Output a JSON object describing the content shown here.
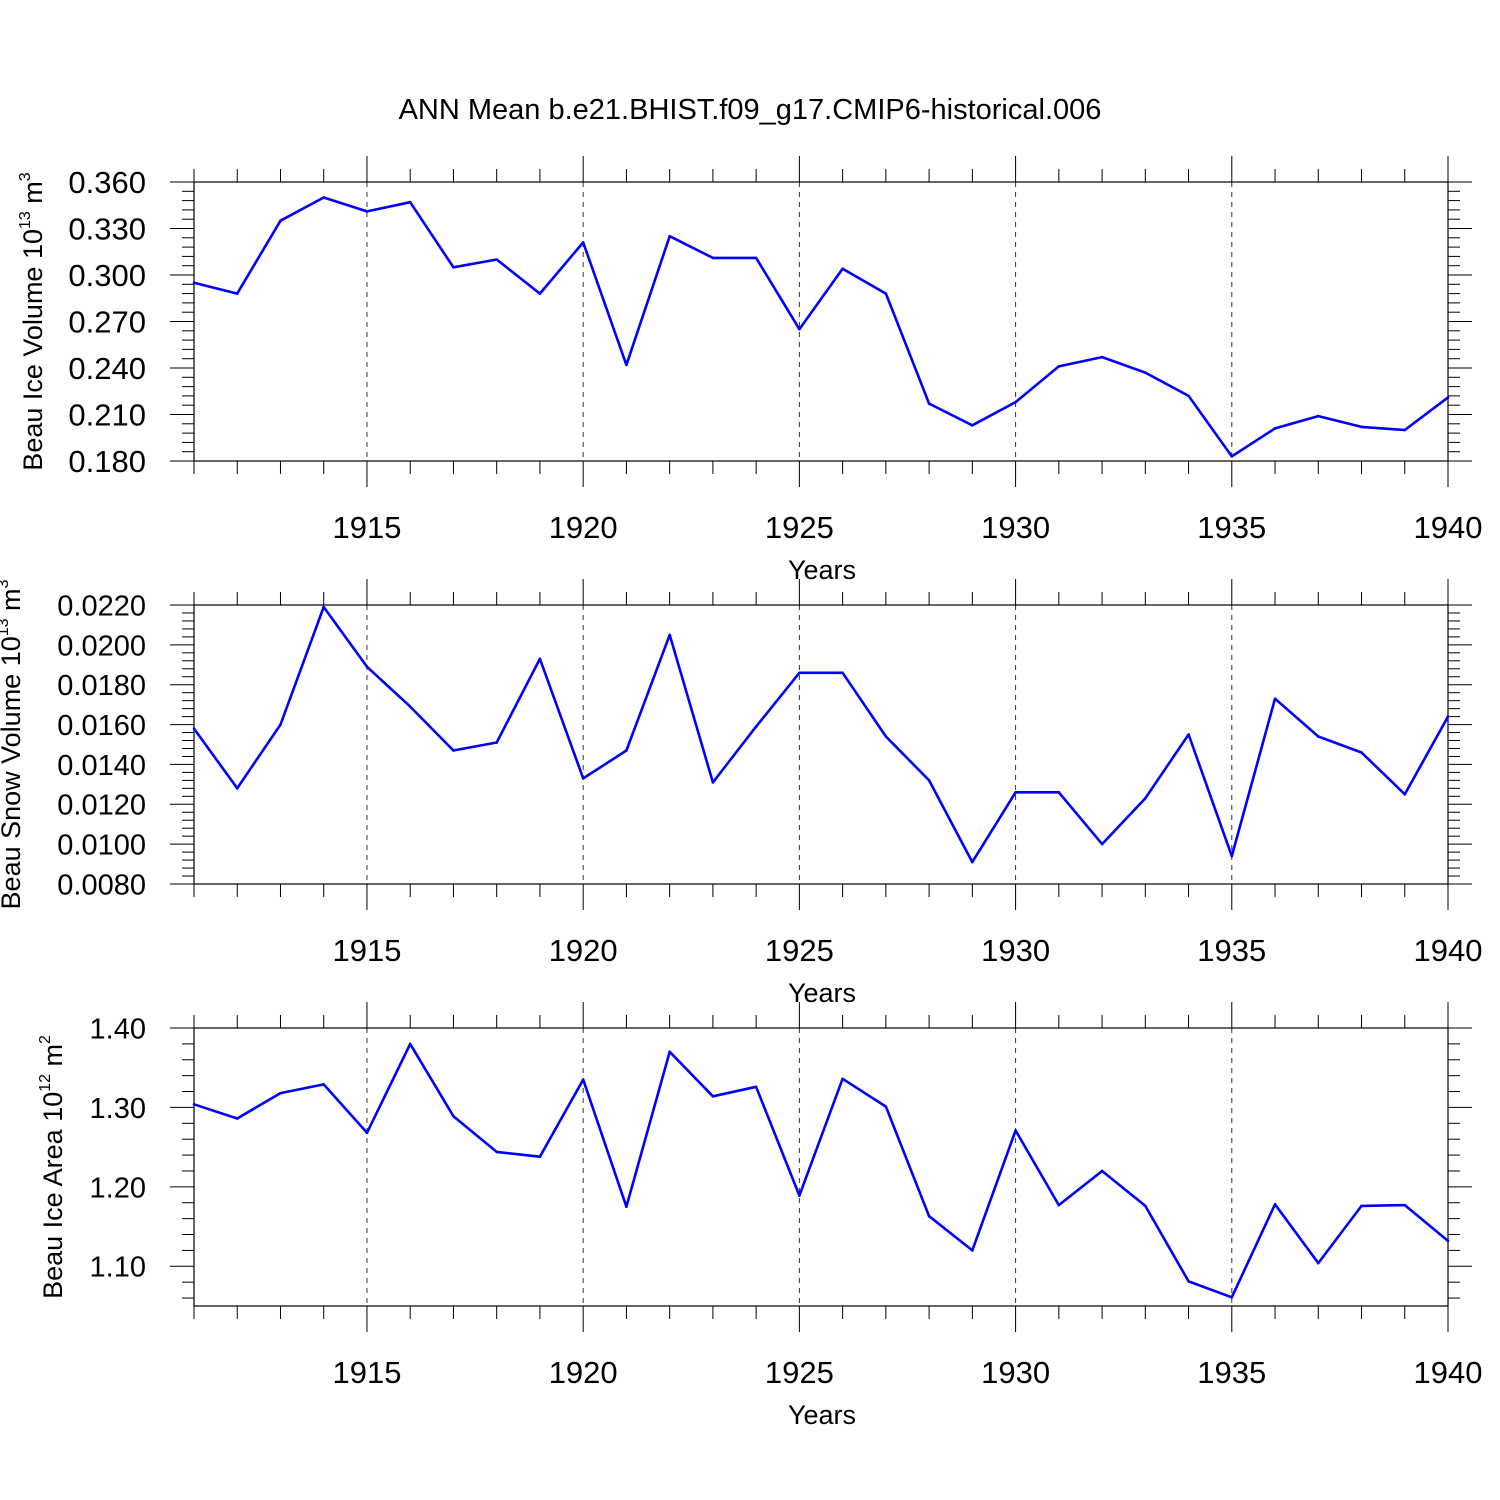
{
  "title": "ANN Mean b.e21.BHIST.f09_g17.CMIP6-historical.006",
  "line_color": "#0000ff",
  "chart_data": [
    {
      "type": "line",
      "xlabel": "Years",
      "ylabel": {
        "text": "Beau Ice Volume 10",
        "exp": "13",
        "unit": " m",
        "unit_exp": "3"
      },
      "xlim": [
        1911,
        1940
      ],
      "ylim": [
        0.18,
        0.36
      ],
      "xticks": [
        1915,
        1920,
        1925,
        1930,
        1935,
        1940
      ],
      "yticks": [
        "0.180",
        "0.210",
        "0.240",
        "0.270",
        "0.300",
        "0.330",
        "0.360"
      ],
      "grid": "vertical dashed at major x ticks",
      "series": [
        {
          "x": [
            1911,
            1912,
            1913,
            1914,
            1915,
            1916,
            1917,
            1918,
            1919,
            1920,
            1921,
            1922,
            1923,
            1924,
            1925,
            1926,
            1927,
            1928,
            1929,
            1930,
            1931,
            1932,
            1933,
            1934,
            1935,
            1936,
            1937,
            1938,
            1939,
            1940
          ],
          "values": [
            0.295,
            0.288,
            0.335,
            0.35,
            0.341,
            0.347,
            0.305,
            0.31,
            0.288,
            0.321,
            0.242,
            0.325,
            0.311,
            0.311,
            0.265,
            0.304,
            0.288,
            0.217,
            0.203,
            0.218,
            0.241,
            0.247,
            0.237,
            0.222,
            0.183,
            0.201,
            0.209,
            0.202,
            0.2,
            0.221
          ]
        }
      ]
    },
    {
      "type": "line",
      "xlabel": "Years",
      "ylabel": {
        "text": "Beau Snow Volume 10",
        "exp": "13",
        "unit": " m",
        "unit_exp": "3"
      },
      "xlim": [
        1911,
        1940
      ],
      "ylim": [
        0.008,
        0.022
      ],
      "xticks": [
        1915,
        1920,
        1925,
        1930,
        1935,
        1940
      ],
      "yticks": [
        "0.0080",
        "0.0100",
        "0.0120",
        "0.0140",
        "0.0160",
        "0.0180",
        "0.0200",
        "0.0220"
      ],
      "grid": "vertical dashed at major x ticks",
      "series": [
        {
          "x": [
            1911,
            1912,
            1913,
            1914,
            1915,
            1916,
            1917,
            1918,
            1919,
            1920,
            1921,
            1922,
            1923,
            1924,
            1925,
            1926,
            1927,
            1928,
            1929,
            1930,
            1931,
            1932,
            1933,
            1934,
            1935,
            1936,
            1937,
            1938,
            1939,
            1940
          ],
          "values": [
            0.0158,
            0.0128,
            0.016,
            0.0219,
            0.0189,
            0.0169,
            0.0147,
            0.0151,
            0.0193,
            0.0133,
            0.0147,
            0.0205,
            0.0131,
            0.0159,
            0.0186,
            0.0186,
            0.0154,
            0.0132,
            0.0091,
            0.0126,
            0.0126,
            0.01,
            0.0123,
            0.0155,
            0.0094,
            0.0173,
            0.0154,
            0.0146,
            0.0125,
            0.0164
          ]
        }
      ]
    },
    {
      "type": "line",
      "xlabel": "Years",
      "ylabel": {
        "text": "Beau Ice Area 10",
        "exp": "12",
        "unit": " m",
        "unit_exp": "2"
      },
      "xlim": [
        1911,
        1940
      ],
      "ylim": [
        1.05,
        1.4
      ],
      "xticks": [
        1915,
        1920,
        1925,
        1930,
        1935,
        1940
      ],
      "yticks": [
        "1.10",
        "1.20",
        "1.30",
        "1.40"
      ],
      "grid": "vertical dashed at major x ticks",
      "series": [
        {
          "x": [
            1911,
            1912,
            1913,
            1914,
            1915,
            1916,
            1917,
            1918,
            1919,
            1920,
            1921,
            1922,
            1923,
            1924,
            1925,
            1926,
            1927,
            1928,
            1929,
            1930,
            1931,
            1932,
            1933,
            1934,
            1935,
            1936,
            1937,
            1938,
            1939,
            1940
          ],
          "values": [
            1.304,
            1.286,
            1.318,
            1.329,
            1.268,
            1.38,
            1.289,
            1.244,
            1.238,
            1.335,
            1.175,
            1.37,
            1.314,
            1.326,
            1.189,
            1.336,
            1.301,
            1.163,
            1.12,
            1.271,
            1.177,
            1.22,
            1.176,
            1.081,
            1.061,
            1.178,
            1.104,
            1.176,
            1.177,
            1.132
          ]
        }
      ]
    }
  ]
}
